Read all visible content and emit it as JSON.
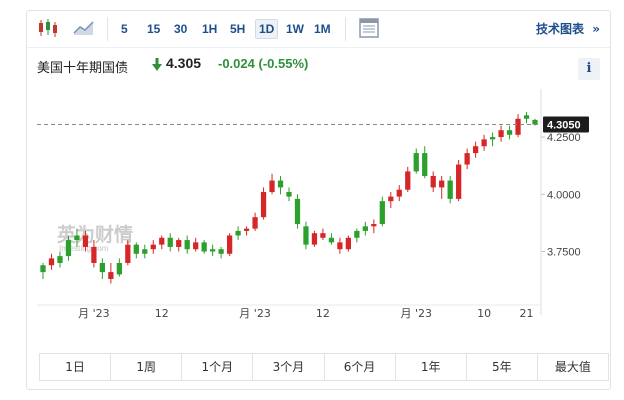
{
  "toolbar": {
    "timeframes": [
      "5",
      "15",
      "30",
      "1H",
      "5H",
      "1D",
      "1W",
      "1M"
    ],
    "active_timeframe": "1D",
    "tech_chart_label": "技术图表",
    "tech_chart_arrow": "»"
  },
  "instrument": {
    "name": "美国十年期国债",
    "price": "4.305",
    "change": "-0.024",
    "change_pct": "(-0.55%)",
    "direction": "down",
    "info_label": "i"
  },
  "watermark": {
    "text": "英为财情",
    "subtext": "Investing.com"
  },
  "range_buttons": [
    "1日",
    "1周",
    "1个月",
    "3个月",
    "6个月",
    "1年",
    "5年",
    "最大值"
  ],
  "colors": {
    "up": "#2ca02c",
    "down": "#d62728",
    "accent": "#1f4e8c",
    "change_text": "#2f8f3a"
  },
  "chart_data": {
    "type": "candlestick",
    "x_tick_labels": [
      "月 '23",
      "12",
      "月 '23",
      "12",
      "月 '23",
      "10",
      "21"
    ],
    "y_tick_labels": [
      "4.2500",
      "4.0000",
      "3.7500"
    ],
    "ylim": [
      3.56,
      4.46
    ],
    "current_value_label": "4.3050",
    "current_value": 4.305,
    "candles": [
      {
        "o": 3.66,
        "h": 3.7,
        "l": 3.63,
        "c": 3.69,
        "d": "up"
      },
      {
        "o": 3.69,
        "h": 3.74,
        "l": 3.67,
        "c": 3.72,
        "d": "down"
      },
      {
        "o": 3.7,
        "h": 3.75,
        "l": 3.68,
        "c": 3.73,
        "d": "up"
      },
      {
        "o": 3.73,
        "h": 3.82,
        "l": 3.71,
        "c": 3.8,
        "d": "up"
      },
      {
        "o": 3.8,
        "h": 3.85,
        "l": 3.77,
        "c": 3.82,
        "d": "up"
      },
      {
        "o": 3.82,
        "h": 3.84,
        "l": 3.75,
        "c": 3.77,
        "d": "down"
      },
      {
        "o": 3.77,
        "h": 3.8,
        "l": 3.68,
        "c": 3.7,
        "d": "down"
      },
      {
        "o": 3.7,
        "h": 3.72,
        "l": 3.63,
        "c": 3.66,
        "d": "up"
      },
      {
        "o": 3.66,
        "h": 3.7,
        "l": 3.61,
        "c": 3.63,
        "d": "down"
      },
      {
        "o": 3.65,
        "h": 3.72,
        "l": 3.64,
        "c": 3.7,
        "d": "up"
      },
      {
        "o": 3.7,
        "h": 3.8,
        "l": 3.69,
        "c": 3.78,
        "d": "down"
      },
      {
        "o": 3.78,
        "h": 3.79,
        "l": 3.72,
        "c": 3.74,
        "d": "up"
      },
      {
        "o": 3.74,
        "h": 3.78,
        "l": 3.72,
        "c": 3.76,
        "d": "up"
      },
      {
        "o": 3.76,
        "h": 3.8,
        "l": 3.74,
        "c": 3.78,
        "d": "down"
      },
      {
        "o": 3.78,
        "h": 3.82,
        "l": 3.76,
        "c": 3.81,
        "d": "down"
      },
      {
        "o": 3.81,
        "h": 3.83,
        "l": 3.75,
        "c": 3.77,
        "d": "up"
      },
      {
        "o": 3.77,
        "h": 3.81,
        "l": 3.75,
        "c": 3.8,
        "d": "down"
      },
      {
        "o": 3.8,
        "h": 3.82,
        "l": 3.74,
        "c": 3.76,
        "d": "up"
      },
      {
        "o": 3.76,
        "h": 3.81,
        "l": 3.75,
        "c": 3.79,
        "d": "down"
      },
      {
        "o": 3.79,
        "h": 3.8,
        "l": 3.74,
        "c": 3.75,
        "d": "up"
      },
      {
        "o": 3.75,
        "h": 3.78,
        "l": 3.73,
        "c": 3.76,
        "d": "up"
      },
      {
        "o": 3.76,
        "h": 3.77,
        "l": 3.72,
        "c": 3.74,
        "d": "up"
      },
      {
        "o": 3.74,
        "h": 3.83,
        "l": 3.73,
        "c": 3.82,
        "d": "down"
      },
      {
        "o": 3.82,
        "h": 3.86,
        "l": 3.8,
        "c": 3.84,
        "d": "up"
      },
      {
        "o": 3.84,
        "h": 3.86,
        "l": 3.82,
        "c": 3.85,
        "d": "down"
      },
      {
        "o": 3.85,
        "h": 3.92,
        "l": 3.84,
        "c": 3.9,
        "d": "down"
      },
      {
        "o": 3.9,
        "h": 4.03,
        "l": 3.89,
        "c": 4.01,
        "d": "down"
      },
      {
        "o": 4.01,
        "h": 4.09,
        "l": 4.0,
        "c": 4.06,
        "d": "down"
      },
      {
        "o": 4.06,
        "h": 4.08,
        "l": 4.0,
        "c": 4.03,
        "d": "up"
      },
      {
        "o": 4.01,
        "h": 4.03,
        "l": 3.97,
        "c": 3.99,
        "d": "up"
      },
      {
        "o": 3.98,
        "h": 4.0,
        "l": 3.85,
        "c": 3.87,
        "d": "up"
      },
      {
        "o": 3.86,
        "h": 3.88,
        "l": 3.76,
        "c": 3.78,
        "d": "up"
      },
      {
        "o": 3.78,
        "h": 3.84,
        "l": 3.77,
        "c": 3.83,
        "d": "down"
      },
      {
        "o": 3.83,
        "h": 3.85,
        "l": 3.8,
        "c": 3.81,
        "d": "down"
      },
      {
        "o": 3.81,
        "h": 3.83,
        "l": 3.78,
        "c": 3.79,
        "d": "up"
      },
      {
        "o": 3.79,
        "h": 3.81,
        "l": 3.74,
        "c": 3.76,
        "d": "down"
      },
      {
        "o": 3.76,
        "h": 3.82,
        "l": 3.75,
        "c": 3.81,
        "d": "down"
      },
      {
        "o": 3.81,
        "h": 3.85,
        "l": 3.79,
        "c": 3.84,
        "d": "up"
      },
      {
        "o": 3.84,
        "h": 3.88,
        "l": 3.82,
        "c": 3.86,
        "d": "up"
      },
      {
        "o": 3.86,
        "h": 3.89,
        "l": 3.83,
        "c": 3.87,
        "d": "down"
      },
      {
        "o": 3.87,
        "h": 3.99,
        "l": 3.86,
        "c": 3.97,
        "d": "up"
      },
      {
        "o": 3.97,
        "h": 4.01,
        "l": 3.94,
        "c": 3.99,
        "d": "down"
      },
      {
        "o": 3.99,
        "h": 4.04,
        "l": 3.97,
        "c": 4.02,
        "d": "down"
      },
      {
        "o": 4.02,
        "h": 4.12,
        "l": 4.01,
        "c": 4.1,
        "d": "down"
      },
      {
        "o": 4.1,
        "h": 4.2,
        "l": 4.09,
        "c": 4.18,
        "d": "up"
      },
      {
        "o": 4.18,
        "h": 4.21,
        "l": 4.07,
        "c": 4.08,
        "d": "up"
      },
      {
        "o": 4.08,
        "h": 4.1,
        "l": 4.01,
        "c": 4.03,
        "d": "down"
      },
      {
        "o": 4.03,
        "h": 4.08,
        "l": 3.98,
        "c": 4.06,
        "d": "down"
      },
      {
        "o": 4.06,
        "h": 4.08,
        "l": 3.96,
        "c": 3.98,
        "d": "up"
      },
      {
        "o": 3.98,
        "h": 4.15,
        "l": 3.97,
        "c": 4.13,
        "d": "down"
      },
      {
        "o": 4.13,
        "h": 4.2,
        "l": 4.11,
        "c": 4.18,
        "d": "down"
      },
      {
        "o": 4.18,
        "h": 4.23,
        "l": 4.16,
        "c": 4.21,
        "d": "down"
      },
      {
        "o": 4.21,
        "h": 4.26,
        "l": 4.19,
        "c": 4.24,
        "d": "down"
      },
      {
        "o": 4.24,
        "h": 4.27,
        "l": 4.21,
        "c": 4.25,
        "d": "up"
      },
      {
        "o": 4.25,
        "h": 4.3,
        "l": 4.23,
        "c": 4.28,
        "d": "down"
      },
      {
        "o": 4.28,
        "h": 4.3,
        "l": 4.24,
        "c": 4.26,
        "d": "up"
      },
      {
        "o": 4.26,
        "h": 4.35,
        "l": 4.25,
        "c": 4.33,
        "d": "down"
      },
      {
        "o": 4.33,
        "h": 4.36,
        "l": 4.31,
        "c": 4.345,
        "d": "up"
      },
      {
        "o": 4.325,
        "h": 4.33,
        "l": 4.3,
        "c": 4.305,
        "d": "up"
      }
    ]
  }
}
